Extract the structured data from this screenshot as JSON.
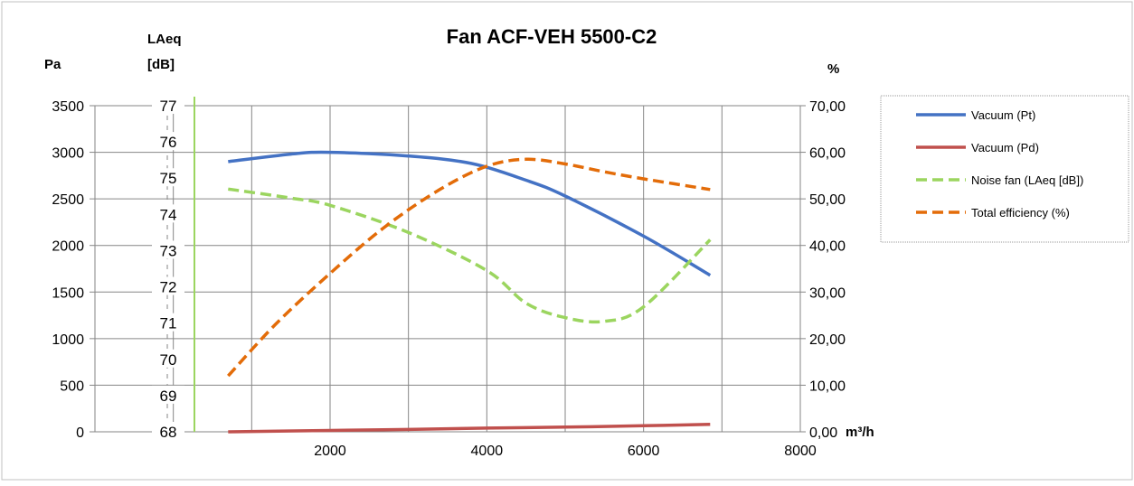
{
  "chart_data": {
    "type": "line",
    "title": "Fan ACF-VEH 5500-C2",
    "x_unit": "m³/h",
    "xlim": [
      -1000,
      8000
    ],
    "x_ticks": [
      "2000",
      "4000",
      "6000",
      "8000"
    ],
    "axes": {
      "pa": {
        "label": "Pa",
        "lim": [
          0,
          3500
        ],
        "ticks": [
          "0",
          "500",
          "1000",
          "1500",
          "2000",
          "2500",
          "3000",
          "3500"
        ]
      },
      "laeq": {
        "label_line1": "LAeq",
        "label_line2": "[dB]",
        "lim": [
          68,
          77
        ],
        "ticks": [
          "68",
          "69",
          "70",
          "71",
          "72",
          "73",
          "74",
          "75",
          "76",
          "77"
        ]
      },
      "percent": {
        "label": "%",
        "lim": [
          0,
          70
        ],
        "ticks": [
          "0,00",
          "10,00",
          "20,00",
          "30,00",
          "40,00",
          "50,00",
          "60,00",
          "70,00"
        ]
      }
    },
    "grid": true,
    "legend_position": "right",
    "series": [
      {
        "name": "Vacuum (Pt)",
        "axis": "pa",
        "color": "#4472c4",
        "dash": false,
        "x": [
          700,
          1500,
          2000,
          3000,
          3800,
          4500,
          5000,
          6000,
          6850
        ],
        "y": [
          2900,
          2980,
          3000,
          2960,
          2880,
          2700,
          2530,
          2100,
          1680
        ]
      },
      {
        "name": "Vacuum (Pd)",
        "axis": "pa",
        "color": "#c0504d",
        "dash": false,
        "x": [
          700,
          2000,
          3000,
          4000,
          5000,
          6000,
          6850
        ],
        "y": [
          0,
          15,
          25,
          40,
          50,
          65,
          80
        ]
      },
      {
        "name": "Noise fan (LAeq [dB])",
        "axis": "laeq",
        "color": "#9bd55f",
        "dash": true,
        "x": [
          700,
          1500,
          2000,
          3000,
          4000,
          4500,
          5000,
          5500,
          6000,
          6850
        ],
        "y": [
          74.7,
          74.45,
          74.25,
          73.5,
          72.45,
          71.55,
          71.15,
          71.05,
          71.45,
          73.3
        ]
      },
      {
        "name": "Total efficiency (%)",
        "axis": "percent",
        "color": "#e36c09",
        "dash": true,
        "x": [
          700,
          1300,
          2000,
          2700,
          3400,
          4000,
          4500,
          5000,
          5500,
          6000,
          6850
        ],
        "y": [
          12,
          23,
          34,
          44,
          52,
          57,
          58.5,
          57.5,
          55.8,
          54.3,
          52
        ]
      }
    ]
  }
}
